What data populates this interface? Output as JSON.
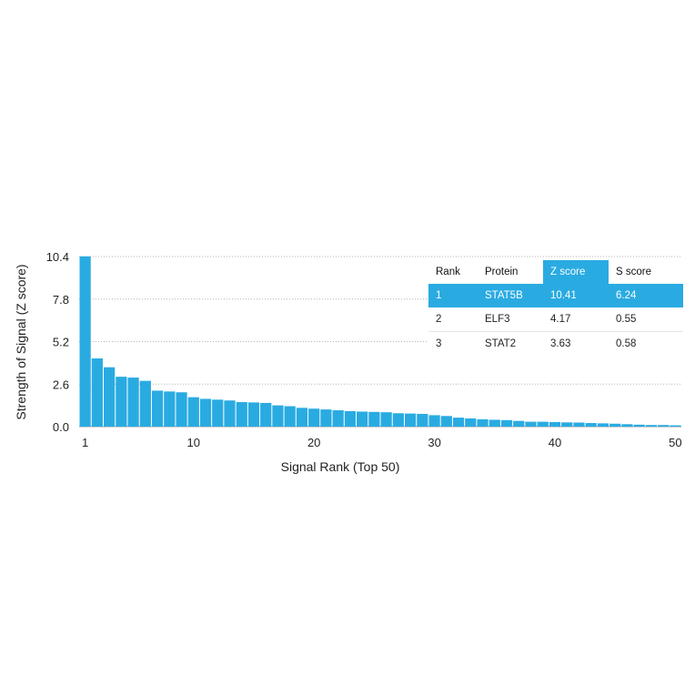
{
  "chart_data": {
    "type": "bar",
    "xlabel": "Signal Rank (Top 50)",
    "ylabel": "Strength of Signal (Z score)",
    "ylim": [
      0,
      10.4
    ],
    "yticks": [
      "0.0",
      "2.6",
      "5.2",
      "7.8",
      "10.4"
    ],
    "xticks": [
      "1",
      "10",
      "20",
      "30",
      "40",
      "50"
    ],
    "grid": "horizontal dotted",
    "bar_color": "#29abe2",
    "x": [
      1,
      2,
      3,
      4,
      5,
      6,
      7,
      8,
      9,
      10,
      11,
      12,
      13,
      14,
      15,
      16,
      17,
      18,
      19,
      20,
      21,
      22,
      23,
      24,
      25,
      26,
      27,
      28,
      29,
      30,
      31,
      32,
      33,
      34,
      35,
      36,
      37,
      38,
      39,
      40,
      41,
      42,
      43,
      44,
      45,
      46,
      47,
      48,
      49,
      50
    ],
    "values": [
      10.41,
      4.17,
      3.63,
      3.05,
      3.0,
      2.8,
      2.2,
      2.15,
      2.1,
      1.8,
      1.7,
      1.65,
      1.6,
      1.5,
      1.48,
      1.45,
      1.3,
      1.25,
      1.15,
      1.1,
      1.05,
      1.0,
      0.95,
      0.92,
      0.9,
      0.88,
      0.82,
      0.8,
      0.78,
      0.7,
      0.65,
      0.55,
      0.5,
      0.45,
      0.42,
      0.4,
      0.35,
      0.3,
      0.3,
      0.28,
      0.26,
      0.25,
      0.22,
      0.2,
      0.18,
      0.15,
      0.12,
      0.1,
      0.1,
      0.08
    ]
  },
  "table": {
    "headers": [
      "Rank",
      "Protein",
      "Z score",
      "S score"
    ],
    "rows": [
      [
        "1",
        "STAT5B",
        "10.41",
        "6.24"
      ],
      [
        "2",
        "ELF3",
        "4.17",
        "0.55"
      ],
      [
        "3",
        "STAT2",
        "3.63",
        "0.58"
      ]
    ]
  }
}
